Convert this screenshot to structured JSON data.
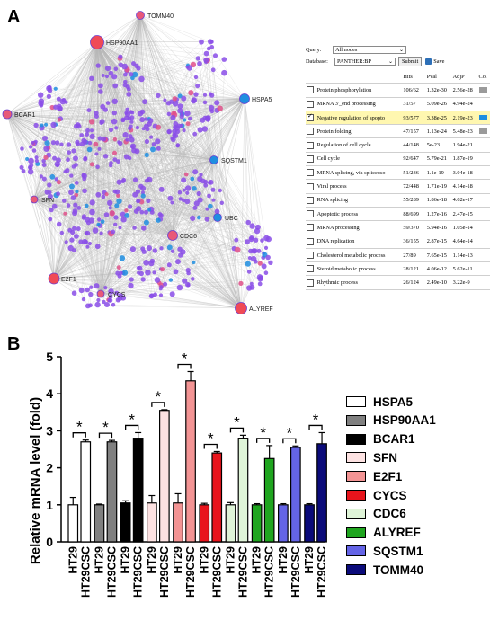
{
  "panels": {
    "a": "A",
    "b": "B"
  },
  "network": {
    "labeled_nodes": [
      {
        "label": "TOMM40",
        "color": "#e8587a"
      },
      {
        "label": "HSP90AA1",
        "color": "#f04a56"
      },
      {
        "label": "HSPA5",
        "color": "#1f8ee0"
      },
      {
        "label": "BCAR1",
        "color": "#e85a78"
      },
      {
        "label": "SQSTM1",
        "color": "#1f8ee0"
      },
      {
        "label": "SFN",
        "color": "#e85a78"
      },
      {
        "label": "UBC",
        "color": "#1f8ee0"
      },
      {
        "label": "CDC6",
        "color": "#e85a78"
      },
      {
        "label": "E2F1",
        "color": "#f04a56"
      },
      {
        "label": "CYCS",
        "color": "#e85a78"
      },
      {
        "label": "ALYREF",
        "color": "#f04a56"
      }
    ],
    "colors": {
      "node_main": "#8a4de8",
      "node_blue": "#1f8ee0",
      "node_pink": "#e0508a",
      "edge": "#b8b8b8"
    }
  },
  "enrichment_ui": {
    "query_label": "Query:",
    "query_value": "All nodes",
    "database_label": "Database:",
    "database_value": "PANTHER:BP",
    "submit_label": "Submit",
    "save_label": "Save",
    "headers": [
      "",
      "Hits",
      "Pval",
      "AdjP",
      "Col"
    ],
    "rows": [
      {
        "checked": false,
        "term": "Protein phosphorylation",
        "hits": "106/62",
        "pval": "1.32e-30",
        "adjp": "2.56e-28",
        "swatch": "#9a9a9a",
        "highlight": false
      },
      {
        "checked": false,
        "term": "MRNA 3'_end processing",
        "hits": "31/57",
        "pval": "5.09e-26",
        "adjp": "4.94e-24",
        "swatch": "",
        "highlight": false
      },
      {
        "checked": true,
        "term": "Negative regulation of apopto",
        "hits": "93/577",
        "pval": "3.38e-25",
        "adjp": "2.19e-23",
        "swatch": "#1f8ee0",
        "highlight": true
      },
      {
        "checked": false,
        "term": "Protein folding",
        "hits": "47/157",
        "pval": "1.13e-24",
        "adjp": "5.48e-23",
        "swatch": "#9a9a9a",
        "highlight": false
      },
      {
        "checked": false,
        "term": "Regulation of cell cycle",
        "hits": "44/148",
        "pval": "5e-23",
        "adjp": "1.94e-21",
        "swatch": "",
        "highlight": false
      },
      {
        "checked": false,
        "term": "Cell cycle",
        "hits": "92/647",
        "pval": "5.79e-21",
        "adjp": "1.87e-19",
        "swatch": "",
        "highlight": false
      },
      {
        "checked": false,
        "term": "MRNA splicing, via spliceoso",
        "hits": "51/236",
        "pval": "1.1e-19",
        "adjp": "3.04e-18",
        "swatch": "",
        "highlight": false
      },
      {
        "checked": false,
        "term": "Viral process",
        "hits": "72/448",
        "pval": "1.71e-19",
        "adjp": "4.14e-18",
        "swatch": "",
        "highlight": false
      },
      {
        "checked": false,
        "term": "RNA splicing",
        "hits": "55/289",
        "pval": "1.86e-18",
        "adjp": "4.02e-17",
        "swatch": "",
        "highlight": false
      },
      {
        "checked": false,
        "term": "Apoptotic process",
        "hits": "88/699",
        "pval": "1.27e-16",
        "adjp": "2.47e-15",
        "swatch": "",
        "highlight": false
      },
      {
        "checked": false,
        "term": "MRNA processing",
        "hits": "59/370",
        "pval": "5.94e-16",
        "adjp": "1.05e-14",
        "swatch": "",
        "highlight": false
      },
      {
        "checked": false,
        "term": "DNA replication",
        "hits": "36/155",
        "pval": "2.87e-15",
        "adjp": "4.64e-14",
        "swatch": "",
        "highlight": false
      },
      {
        "checked": false,
        "term": "Cholesterol metabolic process",
        "hits": "27/89",
        "pval": "7.65e-15",
        "adjp": "1.14e-13",
        "swatch": "",
        "highlight": false
      },
      {
        "checked": false,
        "term": "Steroid metabolic process",
        "hits": "28/121",
        "pval": "4.06e-12",
        "adjp": "5.62e-11",
        "swatch": "",
        "highlight": false
      },
      {
        "checked": false,
        "term": "Rhythmic process",
        "hits": "26/124",
        "pval": "2.49e-10",
        "adjp": "3.22e-9",
        "swatch": "",
        "highlight": false
      }
    ]
  },
  "chart_data": {
    "type": "bar",
    "ylabel": "Relative mRNA level (fold)",
    "ylim": [
      0,
      5
    ],
    "yticks": [
      "0",
      "1",
      "2",
      "3",
      "4",
      "5"
    ],
    "sample_labels": [
      "HT29",
      "HT29CSC"
    ],
    "significance_marker": "*",
    "legend_position": "right",
    "series": [
      {
        "name": "HSPA5",
        "color": "#ffffff",
        "values": [
          1.0,
          2.7
        ],
        "errors": [
          0.2,
          0.05
        ]
      },
      {
        "name": "HSP90AA1",
        "color": "#808080",
        "values": [
          1.0,
          2.7
        ],
        "errors": [
          0.02,
          0.04
        ]
      },
      {
        "name": "BCAR1",
        "color": "#000000",
        "values": [
          1.05,
          2.8
        ],
        "errors": [
          0.06,
          0.15
        ]
      },
      {
        "name": "SFN",
        "color": "#fde2e2",
        "values": [
          1.05,
          3.55
        ],
        "errors": [
          0.2,
          0.02
        ]
      },
      {
        "name": "E2F1",
        "color": "#f39494",
        "values": [
          1.05,
          4.35
        ],
        "errors": [
          0.25,
          0.25
        ]
      },
      {
        "name": "CYCS",
        "color": "#e8141c",
        "values": [
          1.0,
          2.4
        ],
        "errors": [
          0.04,
          0.04
        ]
      },
      {
        "name": "CDC6",
        "color": "#dff4d8",
        "values": [
          1.0,
          2.8
        ],
        "errors": [
          0.06,
          0.08
        ]
      },
      {
        "name": "ALYREF",
        "color": "#1fa51f",
        "values": [
          1.0,
          2.25
        ],
        "errors": [
          0.03,
          0.35
        ]
      },
      {
        "name": "SQSTM1",
        "color": "#6464e6",
        "values": [
          1.0,
          2.55
        ],
        "errors": [
          0.03,
          0.04
        ]
      },
      {
        "name": "TOMM40",
        "color": "#0b0b7a",
        "values": [
          1.0,
          2.65
        ],
        "errors": [
          0.03,
          0.3
        ]
      }
    ]
  }
}
